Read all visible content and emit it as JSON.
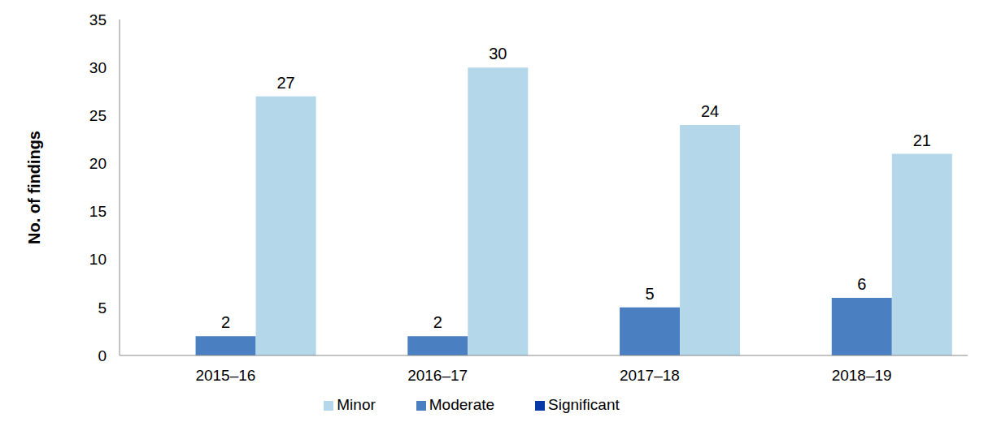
{
  "chart_data": {
    "type": "bar",
    "ylabel": "No. of findings",
    "categories": [
      "2015–16",
      "2016–17",
      "2017–18",
      "2018–19"
    ],
    "series": [
      {
        "name": "Significant",
        "color": "#0a3aa8",
        "values": [
          0,
          0,
          0,
          0
        ]
      },
      {
        "name": "Moderate",
        "color": "#4a7fc1",
        "values": [
          2,
          2,
          5,
          6
        ]
      },
      {
        "name": "Minor",
        "color": "#b4d8ea",
        "values": [
          27,
          30,
          24,
          21
        ]
      }
    ],
    "ylim": [
      0,
      35
    ],
    "yticks": [
      0,
      5,
      10,
      15,
      20,
      25,
      30,
      35
    ],
    "grid": false,
    "data_labels": true,
    "legend": "bottom"
  }
}
